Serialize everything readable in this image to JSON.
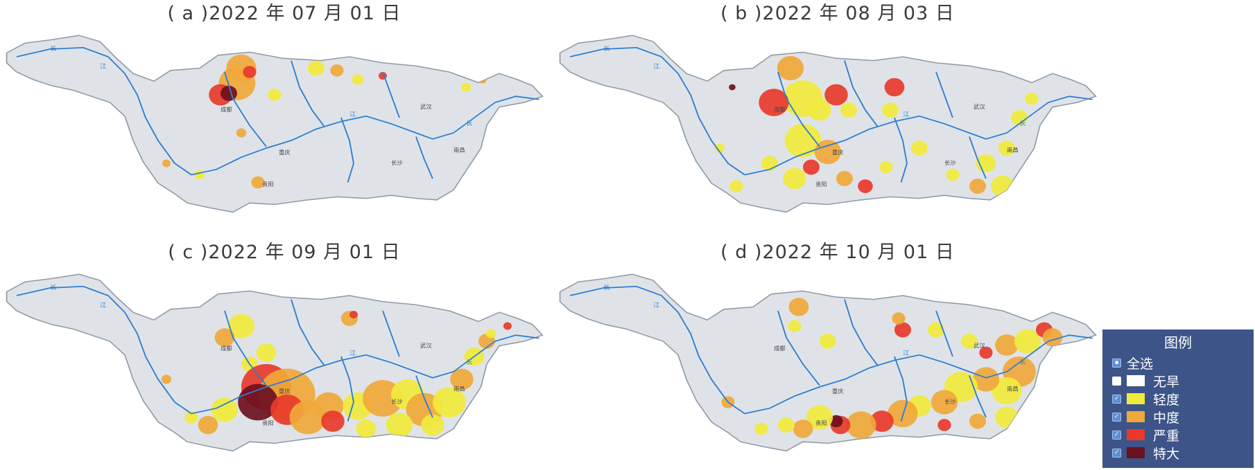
{
  "panels": [
    {
      "title": "( a )2022 年 07 月 01 日",
      "id": "a"
    },
    {
      "title": "( b )2022 年 08 月 03 日",
      "id": "b"
    },
    {
      "title": "( c )2022 年 09 月 01 日",
      "id": "c"
    },
    {
      "title": "( d )2022 年 10 月 01 日",
      "id": "d"
    }
  ],
  "map_labels": {
    "chengdu": "成都",
    "chongqing": "重庆",
    "wuhan": "武汉",
    "nanchang": "南昌",
    "changsha": "长沙",
    "guiyang": "贵阳",
    "jiang": "江",
    "chang": "长"
  },
  "legend": {
    "title": "图例",
    "select_all": "全选",
    "items": [
      {
        "label": "无旱",
        "color": "#ffffff"
      },
      {
        "label": "轻度",
        "color": "#f0ea3c"
      },
      {
        "label": "中度",
        "color": "#f0a83a"
      },
      {
        "label": "严重",
        "color": "#e8392b"
      },
      {
        "label": "特大",
        "color": "#6b1020"
      }
    ]
  },
  "colors": {
    "basin_fill": "#dfe3e8",
    "basin_stroke": "#8f9aa6",
    "river": "#2f7fd0",
    "light": "#f0ea3c",
    "moderate": "#f0a83a",
    "severe": "#e8392b",
    "extreme": "#6b1020"
  }
}
